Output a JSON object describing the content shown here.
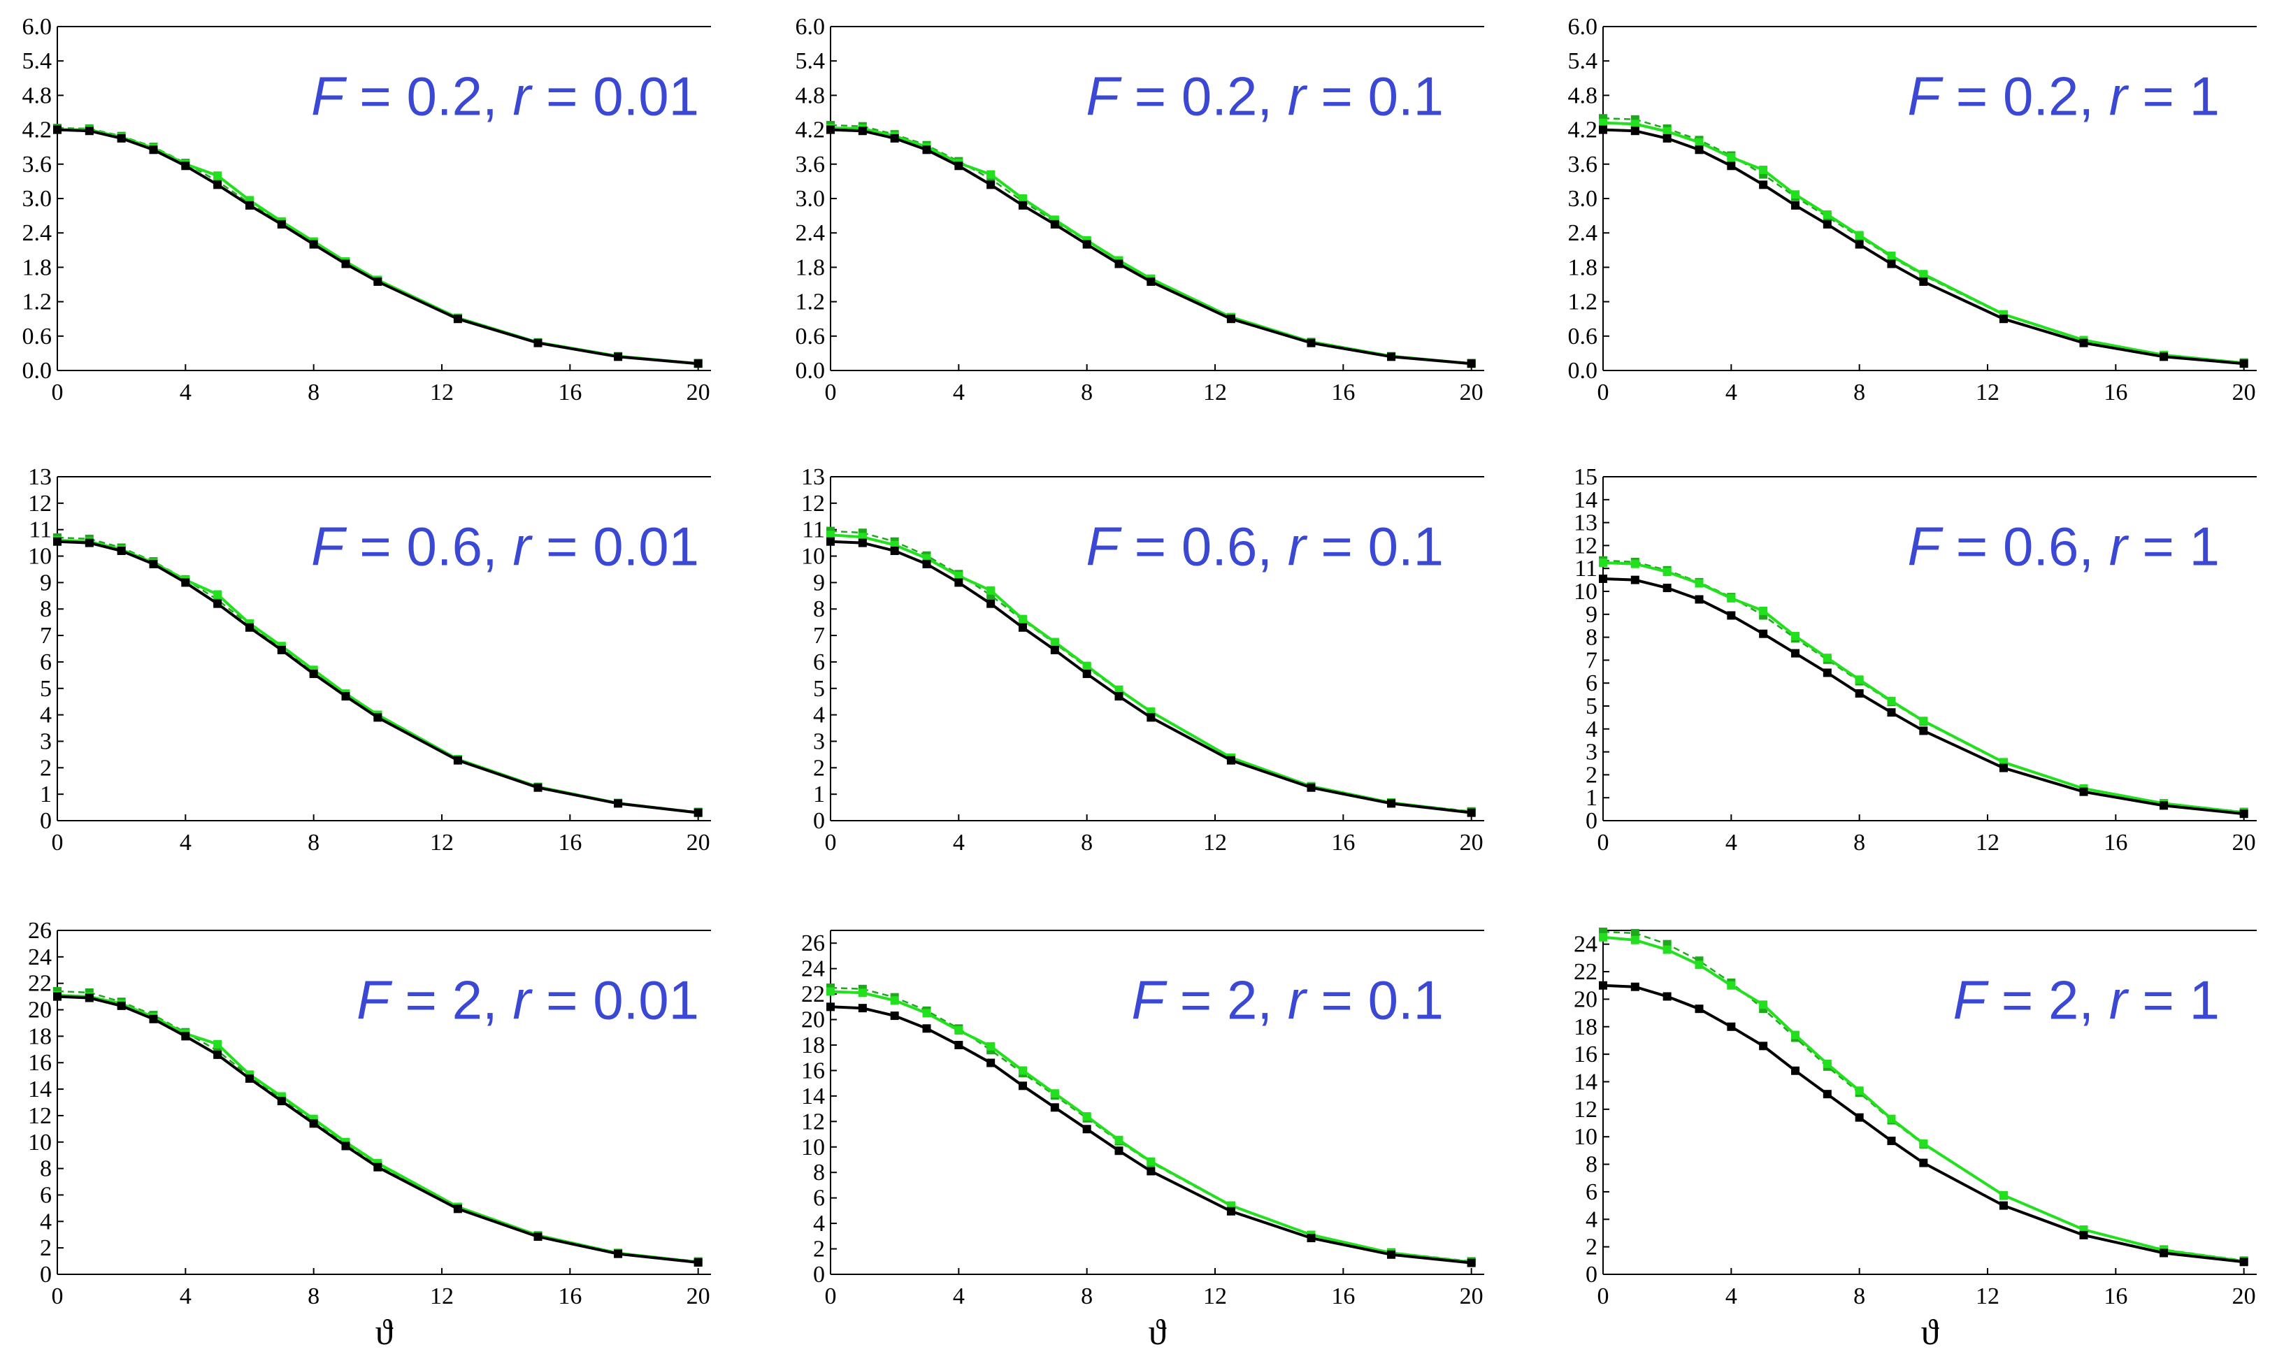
{
  "colors": {
    "reference_series": "#000000",
    "green_solid": "#22e01e",
    "green_dashed": "#1ea81c",
    "annotation": "#3b48d4",
    "axis": "#000000"
  },
  "chart_data": [
    {
      "type": "line",
      "annotation": {
        "F": "0.2",
        "r": "0.01"
      },
      "xlabel": "",
      "xlim": [
        0,
        20.4
      ],
      "ylim": [
        0,
        6
      ],
      "xticks": [
        0,
        4,
        8,
        12,
        16,
        20
      ],
      "yticks": [
        0.0,
        0.6,
        1.2,
        1.8,
        2.4,
        3.0,
        3.6,
        4.2,
        4.8,
        5.4,
        6.0
      ],
      "ytick_decimals": 1,
      "x": [
        0,
        1,
        2,
        3,
        4,
        5,
        6,
        7,
        8,
        9,
        10,
        12.5,
        15,
        17.5,
        20
      ],
      "series": [
        {
          "style": "black-solid",
          "values": [
            4.2,
            4.18,
            4.05,
            3.85,
            3.57,
            3.24,
            2.88,
            2.55,
            2.2,
            1.86,
            1.55,
            0.9,
            0.48,
            0.24,
            0.12
          ]
        },
        {
          "style": "green-solid",
          "values": [
            4.2,
            4.2,
            4.07,
            3.88,
            3.6,
            3.4,
            2.97,
            2.6,
            2.25,
            1.9,
            1.58,
            0.92,
            0.49,
            0.25,
            0.12
          ]
        },
        {
          "style": "green-dashed",
          "values": [
            4.23,
            4.22,
            4.09,
            3.9,
            3.62,
            3.3,
            2.92,
            2.58,
            2.24,
            1.9,
            1.58,
            0.92,
            0.49,
            0.25,
            0.13
          ]
        }
      ]
    },
    {
      "type": "line",
      "annotation": {
        "F": "0.2",
        "r": "0.1"
      },
      "xlabel": "",
      "xlim": [
        0,
        20.4
      ],
      "ylim": [
        0,
        6
      ],
      "xticks": [
        0,
        4,
        8,
        12,
        16,
        20
      ],
      "yticks": [
        0.0,
        0.6,
        1.2,
        1.8,
        2.4,
        3.0,
        3.6,
        4.2,
        4.8,
        5.4,
        6.0
      ],
      "ytick_decimals": 1,
      "x": [
        0,
        1,
        2,
        3,
        4,
        5,
        6,
        7,
        8,
        9,
        10,
        12.5,
        15,
        17.5,
        20
      ],
      "series": [
        {
          "style": "black-solid",
          "values": [
            4.2,
            4.18,
            4.05,
            3.85,
            3.57,
            3.24,
            2.88,
            2.55,
            2.2,
            1.86,
            1.55,
            0.9,
            0.48,
            0.24,
            0.12
          ]
        },
        {
          "style": "green-solid",
          "values": [
            4.23,
            4.22,
            4.09,
            3.9,
            3.62,
            3.42,
            3.0,
            2.63,
            2.27,
            1.92,
            1.6,
            0.93,
            0.5,
            0.25,
            0.12
          ]
        },
        {
          "style": "green-dashed",
          "values": [
            4.28,
            4.26,
            4.12,
            3.93,
            3.65,
            3.34,
            2.95,
            2.6,
            2.26,
            1.92,
            1.6,
            0.93,
            0.5,
            0.25,
            0.13
          ]
        }
      ]
    },
    {
      "type": "line",
      "annotation": {
        "F": "0.2",
        "r": "1"
      },
      "xlabel": "",
      "xlim": [
        0,
        20.4
      ],
      "ylim": [
        0,
        6
      ],
      "xticks": [
        0,
        4,
        8,
        12,
        16,
        20
      ],
      "yticks": [
        0.0,
        0.6,
        1.2,
        1.8,
        2.4,
        3.0,
        3.6,
        4.2,
        4.8,
        5.4,
        6.0
      ],
      "ytick_decimals": 1,
      "x": [
        0,
        1,
        2,
        3,
        4,
        5,
        6,
        7,
        8,
        9,
        10,
        12.5,
        15,
        17.5,
        20
      ],
      "series": [
        {
          "style": "black-solid",
          "values": [
            4.2,
            4.18,
            4.05,
            3.85,
            3.57,
            3.24,
            2.88,
            2.55,
            2.2,
            1.86,
            1.55,
            0.9,
            0.48,
            0.24,
            0.12
          ]
        },
        {
          "style": "green-solid",
          "values": [
            4.32,
            4.3,
            4.17,
            3.98,
            3.72,
            3.5,
            3.07,
            2.72,
            2.36,
            2.0,
            1.68,
            0.98,
            0.53,
            0.27,
            0.13
          ]
        },
        {
          "style": "green-dashed",
          "values": [
            4.4,
            4.38,
            4.22,
            4.02,
            3.75,
            3.42,
            3.03,
            2.68,
            2.33,
            1.98,
            1.66,
            0.97,
            0.52,
            0.27,
            0.14
          ]
        }
      ]
    },
    {
      "type": "line",
      "annotation": {
        "F": "0.6",
        "r": "0.01"
      },
      "xlabel": "",
      "xlim": [
        0,
        20.4
      ],
      "ylim": [
        0,
        13
      ],
      "xticks": [
        0,
        4,
        8,
        12,
        16,
        20
      ],
      "yticks": [
        0,
        1,
        2,
        3,
        4,
        5,
        6,
        7,
        8,
        9,
        10,
        11,
        12,
        13
      ],
      "ytick_decimals": 0,
      "x": [
        0,
        1,
        2,
        3,
        4,
        5,
        6,
        7,
        8,
        9,
        10,
        12.5,
        15,
        17.5,
        20
      ],
      "series": [
        {
          "style": "black-solid",
          "values": [
            10.55,
            10.5,
            10.2,
            9.7,
            9.0,
            8.2,
            7.3,
            6.45,
            5.55,
            4.7,
            3.9,
            2.28,
            1.25,
            0.65,
            0.3
          ]
        },
        {
          "style": "green-solid",
          "values": [
            10.6,
            10.55,
            10.25,
            9.75,
            9.1,
            8.55,
            7.45,
            6.6,
            5.7,
            4.8,
            4.0,
            2.32,
            1.28,
            0.66,
            0.3
          ]
        },
        {
          "style": "green-dashed",
          "values": [
            10.7,
            10.65,
            10.32,
            9.8,
            9.12,
            8.35,
            7.4,
            6.55,
            5.65,
            4.8,
            4.0,
            2.32,
            1.28,
            0.67,
            0.33
          ]
        }
      ]
    },
    {
      "type": "line",
      "annotation": {
        "F": "0.6",
        "r": "0.1"
      },
      "xlabel": "",
      "xlim": [
        0,
        20.4
      ],
      "ylim": [
        0,
        13
      ],
      "xticks": [
        0,
        4,
        8,
        12,
        16,
        20
      ],
      "yticks": [
        0,
        1,
        2,
        3,
        4,
        5,
        6,
        7,
        8,
        9,
        10,
        11,
        12,
        13
      ],
      "ytick_decimals": 0,
      "x": [
        0,
        1,
        2,
        3,
        4,
        5,
        6,
        7,
        8,
        9,
        10,
        12.5,
        15,
        17.5,
        20
      ],
      "series": [
        {
          "style": "black-solid",
          "values": [
            10.55,
            10.5,
            10.2,
            9.7,
            9.0,
            8.2,
            7.3,
            6.45,
            5.55,
            4.7,
            3.9,
            2.28,
            1.25,
            0.65,
            0.3
          ]
        },
        {
          "style": "green-solid",
          "values": [
            10.8,
            10.72,
            10.42,
            9.92,
            9.25,
            8.7,
            7.62,
            6.75,
            5.85,
            4.95,
            4.12,
            2.38,
            1.3,
            0.68,
            0.31
          ]
        },
        {
          "style": "green-dashed",
          "values": [
            10.95,
            10.88,
            10.55,
            10.02,
            9.32,
            8.52,
            7.58,
            6.7,
            5.8,
            4.92,
            4.1,
            2.38,
            1.3,
            0.69,
            0.35
          ]
        }
      ]
    },
    {
      "type": "line",
      "annotation": {
        "F": "0.6",
        "r": "1"
      },
      "xlabel": "",
      "xlim": [
        0,
        20.4
      ],
      "ylim": [
        0,
        15
      ],
      "xticks": [
        0,
        4,
        8,
        12,
        16,
        20
      ],
      "yticks": [
        0,
        1,
        2,
        3,
        4,
        5,
        6,
        7,
        8,
        9,
        10,
        11,
        12,
        13,
        14,
        15
      ],
      "ytick_decimals": 0,
      "x": [
        0,
        1,
        2,
        3,
        4,
        5,
        6,
        7,
        8,
        9,
        10,
        12.5,
        15,
        17.5,
        20
      ],
      "series": [
        {
          "style": "black-solid",
          "values": [
            10.55,
            10.5,
            10.15,
            9.65,
            8.95,
            8.15,
            7.3,
            6.45,
            5.55,
            4.72,
            3.92,
            2.3,
            1.26,
            0.66,
            0.3
          ]
        },
        {
          "style": "green-solid",
          "values": [
            11.25,
            11.2,
            10.85,
            10.35,
            9.7,
            9.15,
            8.05,
            7.1,
            6.15,
            5.22,
            4.35,
            2.55,
            1.4,
            0.75,
            0.35
          ]
        },
        {
          "style": "green-dashed",
          "values": [
            11.35,
            11.28,
            10.92,
            10.4,
            9.75,
            8.95,
            7.95,
            7.02,
            6.08,
            5.18,
            4.32,
            2.52,
            1.4,
            0.76,
            0.38
          ]
        }
      ]
    },
    {
      "type": "line",
      "annotation": {
        "F": "2",
        "r": "0.01"
      },
      "xlabel": "ϑ",
      "xlim": [
        0,
        20.4
      ],
      "ylim": [
        0,
        26
      ],
      "xticks": [
        0,
        4,
        8,
        12,
        16,
        20
      ],
      "yticks": [
        0,
        2,
        4,
        6,
        8,
        10,
        12,
        14,
        16,
        18,
        20,
        22,
        24,
        26
      ],
      "ytick_decimals": 0,
      "x": [
        0,
        1,
        2,
        3,
        4,
        5,
        6,
        7,
        8,
        9,
        10,
        12.5,
        15,
        17.5,
        20
      ],
      "series": [
        {
          "style": "black-solid",
          "values": [
            21.0,
            20.9,
            20.3,
            19.3,
            18.0,
            16.6,
            14.8,
            13.1,
            11.4,
            9.7,
            8.1,
            4.95,
            2.85,
            1.55,
            0.9
          ]
        },
        {
          "style": "green-solid",
          "values": [
            21.1,
            21.0,
            20.45,
            19.45,
            18.2,
            17.4,
            15.1,
            13.45,
            11.75,
            10.0,
            8.4,
            5.1,
            2.95,
            1.6,
            0.92
          ]
        },
        {
          "style": "green-dashed",
          "values": [
            21.4,
            21.3,
            20.6,
            19.6,
            18.3,
            16.9,
            15.0,
            13.3,
            11.6,
            9.9,
            8.3,
            5.05,
            2.95,
            1.62,
            0.98
          ]
        }
      ]
    },
    {
      "type": "line",
      "annotation": {
        "F": "2",
        "r": "0.1"
      },
      "xlabel": "ϑ",
      "xlim": [
        0,
        20.4
      ],
      "ylim": [
        0,
        27
      ],
      "xticks": [
        0,
        4,
        8,
        12,
        16,
        20
      ],
      "yticks": [
        0,
        2,
        4,
        6,
        8,
        10,
        12,
        14,
        16,
        18,
        20,
        22,
        24,
        26
      ],
      "ytick_decimals": 0,
      "x": [
        0,
        1,
        2,
        3,
        4,
        5,
        6,
        7,
        8,
        9,
        10,
        12.5,
        15,
        17.5,
        20
      ],
      "series": [
        {
          "style": "black-solid",
          "values": [
            21.0,
            20.9,
            20.3,
            19.3,
            18.0,
            16.6,
            14.8,
            13.1,
            11.4,
            9.7,
            8.1,
            4.95,
            2.85,
            1.55,
            0.9
          ]
        },
        {
          "style": "green-solid",
          "values": [
            22.2,
            22.1,
            21.5,
            20.5,
            19.15,
            17.9,
            16.0,
            14.2,
            12.4,
            10.55,
            8.85,
            5.4,
            3.1,
            1.68,
            0.95
          ]
        },
        {
          "style": "green-dashed",
          "values": [
            22.5,
            22.4,
            21.75,
            20.7,
            19.3,
            17.6,
            15.8,
            14.05,
            12.25,
            10.45,
            8.78,
            5.35,
            3.1,
            1.72,
            1.02
          ]
        }
      ]
    },
    {
      "type": "line",
      "annotation": {
        "F": "2",
        "r": "1"
      },
      "xlabel": "ϑ",
      "xlim": [
        0,
        20.4
      ],
      "ylim": [
        0,
        25
      ],
      "xticks": [
        0,
        4,
        8,
        12,
        16,
        20
      ],
      "yticks": [
        0,
        2,
        4,
        6,
        8,
        10,
        12,
        14,
        16,
        18,
        20,
        22,
        24
      ],
      "ytick_decimals": 0,
      "x": [
        0,
        1,
        2,
        3,
        4,
        5,
        6,
        7,
        8,
        9,
        10,
        12.5,
        15,
        17.5,
        20
      ],
      "series": [
        {
          "style": "black-solid",
          "values": [
            21.0,
            20.9,
            20.2,
            19.3,
            18.0,
            16.6,
            14.8,
            13.1,
            11.4,
            9.7,
            8.1,
            5.0,
            2.85,
            1.55,
            0.9
          ]
        },
        {
          "style": "green-solid",
          "values": [
            24.5,
            24.3,
            23.6,
            22.5,
            21.0,
            19.6,
            17.4,
            15.3,
            13.35,
            11.3,
            9.5,
            5.75,
            3.25,
            1.75,
            0.95
          ]
        },
        {
          "style": "green-dashed",
          "values": [
            24.9,
            24.8,
            24.0,
            22.8,
            21.2,
            19.3,
            17.2,
            15.1,
            13.2,
            11.2,
            9.45,
            5.72,
            3.25,
            1.8,
            1.0
          ]
        }
      ]
    }
  ]
}
